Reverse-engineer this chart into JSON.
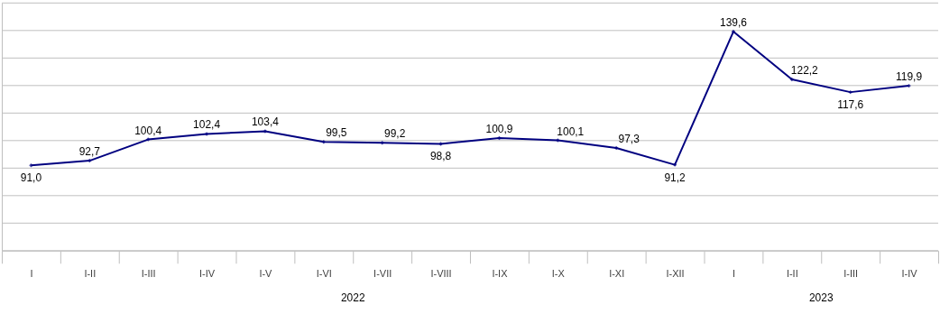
{
  "chart_data": {
    "type": "line",
    "categories": [
      "I",
      "I-II",
      "I-III",
      "I-IV",
      "I-V",
      "I-VI",
      "I-VII",
      "I-VIII",
      "I-IX",
      "I-X",
      "I-XI",
      "I-XII",
      "I",
      "I-II",
      "I-III",
      "I-IV"
    ],
    "series": [
      {
        "color": "#000080",
        "values": [
          91.0,
          92.7,
          100.4,
          102.4,
          103.4,
          99.5,
          99.2,
          98.8,
          100.9,
          100.1,
          97.3,
          91.2,
          139.6,
          122.2,
          117.6,
          119.9
        ],
        "value_labels": [
          "91,0",
          "92,7",
          "100,4",
          "102,4",
          "103,4",
          "99,5",
          "99,2",
          "98,8",
          "100,9",
          "100,1",
          "97,3",
          "91,2",
          "139,6",
          "122,2",
          "117,6",
          "119,9"
        ]
      }
    ],
    "ylim": [
      60,
      150
    ],
    "yticks": [
      {
        "value": 60,
        "label": null
      },
      {
        "value": 70,
        "label": null
      },
      {
        "value": 80,
        "label": null
      },
      {
        "value": 90,
        "label": null
      },
      {
        "value": 100,
        "label": null
      },
      {
        "value": 110,
        "label": null
      },
      {
        "value": 120,
        "label": null
      },
      {
        "value": 130,
        "label": null
      },
      {
        "value": 140,
        "label": null
      },
      {
        "value": 150,
        "label": null
      }
    ],
    "tick_labels": "x",
    "grid": "y",
    "marker": "diamond",
    "line_style": "solid",
    "annotations": [
      "2022",
      "2023"
    ]
  }
}
